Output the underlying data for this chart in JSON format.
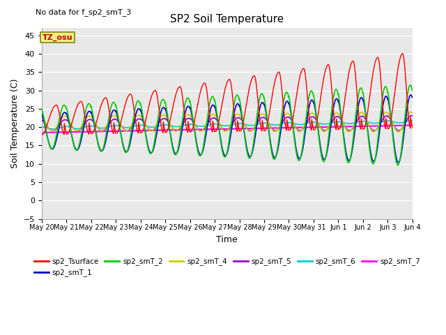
{
  "title": "SP2 Soil Temperature",
  "subtitle": "No data for f_sp2_smT_3",
  "ylabel": "Soil Temperature (C)",
  "xlabel": "Time",
  "ylim": [
    -5,
    47
  ],
  "yticks": [
    -5,
    0,
    5,
    10,
    15,
    20,
    25,
    30,
    35,
    40,
    45
  ],
  "tz_label": "TZ_osu",
  "bg_color": "#ffffff",
  "plot_bg": "#e8e8e8",
  "x_tick_labels": [
    "May 20",
    "May 21",
    "May 22",
    "May 23",
    "May 24",
    "May 25",
    "May 26",
    "May 27",
    "May 28",
    "May 29",
    "May 30",
    "May 31",
    "Jun 1",
    "Jun 2",
    "Jun 3",
    "Jun 4"
  ],
  "legend": [
    {
      "label": "sp2_Tsurface",
      "color": "#ff0000"
    },
    {
      "label": "sp2_smT_1",
      "color": "#0000cc"
    },
    {
      "label": "sp2_smT_2",
      "color": "#00cc00"
    },
    {
      "label": "sp2_smT_4",
      "color": "#cccc00"
    },
    {
      "label": "sp2_smT_5",
      "color": "#9900cc"
    },
    {
      "label": "sp2_smT_6",
      "color": "#00cccc"
    },
    {
      "label": "sp2_smT_7",
      "color": "#ff00ff"
    }
  ]
}
